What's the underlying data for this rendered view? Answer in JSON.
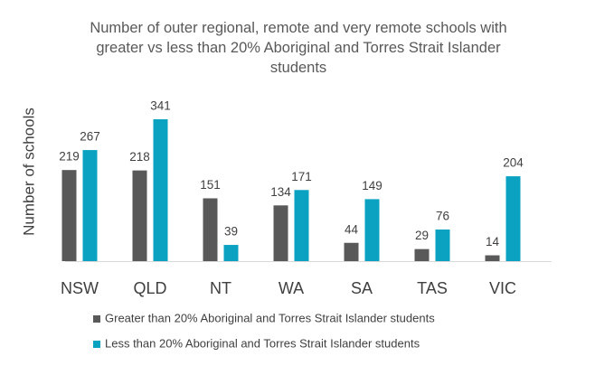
{
  "chart_data": {
    "type": "bar",
    "title": "Number of outer regional, remote and very remote schools with greater vs less than 20% Aboriginal and Torres Strait Islander students",
    "y_label": "Number of schools",
    "categories": [
      "NSW",
      "QLD",
      "NT",
      "WA",
      "SA",
      "TAS",
      "VIC"
    ],
    "series": [
      {
        "name": "Greater than 20% Aboriginal and Torres Strait Islander students",
        "color": "#595959",
        "values": [
          219,
          218,
          151,
          134,
          44,
          29,
          14
        ]
      },
      {
        "name": "Less than 20% Aboriginal and Torres Strait Islander students",
        "color": "#0aa2c0",
        "values": [
          267,
          341,
          39,
          171,
          149,
          76,
          204
        ]
      }
    ]
  }
}
